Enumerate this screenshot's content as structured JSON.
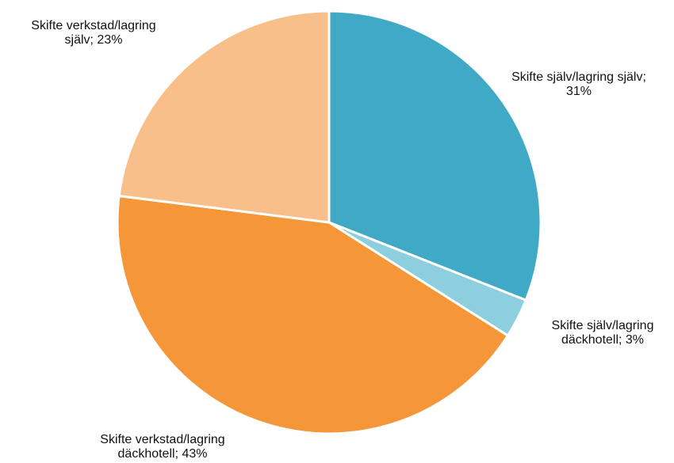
{
  "chart_data": {
    "type": "pie",
    "values": [
      31,
      3,
      43,
      23
    ],
    "value_labels": [
      "Skifte själv/lagring själv; 31%",
      "Skifte själv/lagring däckhotell; 3%",
      "Skifte verkstad/lagring däckhotell; 43%",
      "Skifte verkstad/lagring själv; 23%"
    ],
    "colors": [
      "#3fa9c6",
      "#8ecfdf",
      "#f59638",
      "#f9bf8a"
    ]
  }
}
